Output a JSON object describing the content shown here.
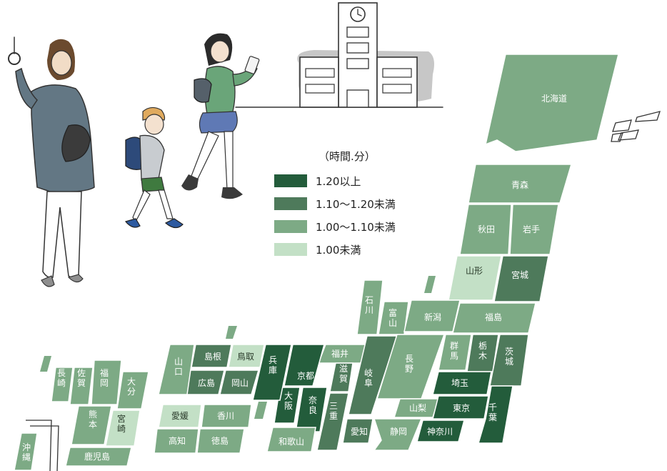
{
  "legend": {
    "title": "（時間.分）",
    "items": [
      {
        "label": "1.20以上",
        "color": "#235c3b"
      },
      {
        "label": "1.10〜1.20未満",
        "color": "#4e7a5b"
      },
      {
        "label": "1.00〜1.10未満",
        "color": "#7daa85"
      },
      {
        "label": "1.00未満",
        "color": "#c3e0c6"
      }
    ]
  },
  "prefectures": {
    "hokkaido": {
      "label": "北海道",
      "class": "1.00〜1.10未満"
    },
    "aomori": {
      "label": "青森",
      "class": "1.00〜1.10未満"
    },
    "akita": {
      "label": "秋田",
      "class": "1.00〜1.10未満"
    },
    "iwate": {
      "label": "岩手",
      "class": "1.00〜1.10未満"
    },
    "yamagata": {
      "label": "山形",
      "class": "1.00未満"
    },
    "miyagi": {
      "label": "宮城",
      "class": "1.10〜1.20未満"
    },
    "ishikawa": {
      "label": "石川",
      "class": "1.00〜1.10未満"
    },
    "toyama": {
      "label": "富山",
      "class": "1.00〜1.10未満"
    },
    "niigata": {
      "label": "新潟",
      "class": "1.00〜1.10未満"
    },
    "fukushima": {
      "label": "福島",
      "class": "1.00〜1.10未満"
    },
    "fukui": {
      "label": "福井",
      "class": "1.00〜1.10未満"
    },
    "gifu": {
      "label": "岐阜",
      "class": "1.10〜1.20未満"
    },
    "nagano": {
      "label": "長野",
      "class": "1.00〜1.10未満"
    },
    "gunma": {
      "label": "群馬",
      "class": "1.00〜1.10未満"
    },
    "tochigi": {
      "label": "栃木",
      "class": "1.10〜1.20未満"
    },
    "ibaraki": {
      "label": "茨城",
      "class": "1.10〜1.20未満"
    },
    "saitama": {
      "label": "埼玉",
      "class": "1.20以上"
    },
    "yamanashi": {
      "label": "山梨",
      "class": "1.00〜1.10未満"
    },
    "tokyo": {
      "label": "東京",
      "class": "1.20以上"
    },
    "chiba": {
      "label": "千葉",
      "class": "1.20以上"
    },
    "kanagawa": {
      "label": "神奈川",
      "class": "1.20以上"
    },
    "shizuoka": {
      "label": "静岡",
      "class": "1.00〜1.10未満"
    },
    "aichi": {
      "label": "愛知",
      "class": "1.10〜1.20未満"
    },
    "shiga": {
      "label": "滋賀",
      "class": "1.10〜1.20未満"
    },
    "mie": {
      "label": "三重",
      "class": "1.10〜1.20未満"
    },
    "kyoto": {
      "label": "京都",
      "class": "1.20以上"
    },
    "nara": {
      "label": "奈良",
      "class": "1.20以上"
    },
    "osaka": {
      "label": "大阪",
      "class": "1.20以上"
    },
    "hyogo": {
      "label": "兵庫",
      "class": "1.20以上"
    },
    "wakayama": {
      "label": "和歌山",
      "class": "1.00〜1.10未満"
    },
    "tottori": {
      "label": "鳥取",
      "class": "1.00未満"
    },
    "shimane": {
      "label": "島根",
      "class": "1.10〜1.20未満"
    },
    "okayama": {
      "label": "岡山",
      "class": "1.10〜1.20未満"
    },
    "hiroshima": {
      "label": "広島",
      "class": "1.10〜1.20未満"
    },
    "yamaguchi": {
      "label": "山口",
      "class": "1.00〜1.10未満"
    },
    "kagawa": {
      "label": "香川",
      "class": "1.00〜1.10未満"
    },
    "ehime": {
      "label": "愛媛",
      "class": "1.00未満"
    },
    "kochi": {
      "label": "高知",
      "class": "1.00〜1.10未満"
    },
    "tokushima": {
      "label": "徳島",
      "class": "1.00〜1.10未満"
    },
    "fukuoka": {
      "label": "福岡",
      "class": "1.00〜1.10未満"
    },
    "saga": {
      "label": "佐賀",
      "class": "1.00〜1.10未満"
    },
    "nagasaki": {
      "label": "長崎",
      "class": "1.00〜1.10未満"
    },
    "oita": {
      "label": "大分",
      "class": "1.00〜1.10未満"
    },
    "kumamoto": {
      "label": "熊本",
      "class": "1.00〜1.10未満"
    },
    "miyazaki": {
      "label": "宮崎",
      "class": "1.00未満"
    },
    "kagoshima": {
      "label": "鹿児島",
      "class": "1.00〜1.10未満"
    },
    "okinawa": {
      "label": "沖縄",
      "class": "1.00〜1.10未満"
    }
  }
}
